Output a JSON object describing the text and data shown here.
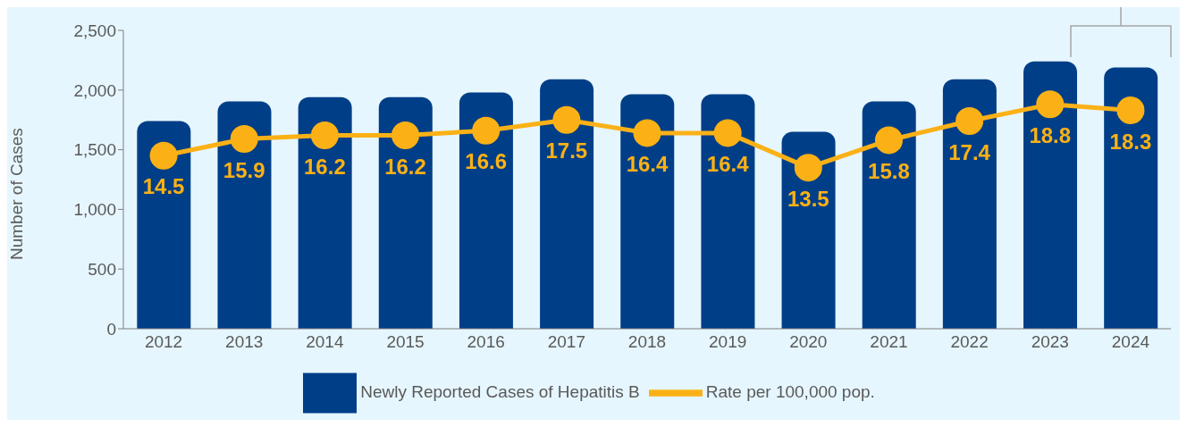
{
  "chart_data": {
    "type": "bar",
    "ylabel": "Number of Cases",
    "categories": [
      "2012",
      "2013",
      "2014",
      "2015",
      "2016",
      "2017",
      "2018",
      "2019",
      "2020",
      "2021",
      "2022",
      "2023",
      "2024"
    ],
    "series": [
      {
        "name": "Newly Reported Cases of Hepatitis B",
        "color": "#003f87",
        "values": [
          1740,
          1905,
          1940,
          1940,
          1980,
          2090,
          1965,
          1965,
          1650,
          1905,
          2090,
          2240,
          2190
        ]
      },
      {
        "name": "Rate per 100,000 pop.",
        "type": "line",
        "axis": "y2",
        "color": "#fbb116",
        "marker": "circle",
        "values": [
          14.5,
          15.9,
          16.2,
          16.2,
          16.6,
          17.5,
          16.4,
          16.4,
          13.5,
          15.8,
          17.4,
          18.8,
          18.3
        ],
        "data_labels": true
      }
    ],
    "ylim": [
      0,
      2500
    ],
    "yticks": [
      0,
      500,
      {
        "value": 1000,
        "label": "1,000"
      },
      {
        "value": 1500,
        "label": "1,500"
      },
      {
        "value": 2000,
        "label": "2,000"
      },
      {
        "value": 2500,
        "label": "2,500"
      }
    ],
    "y2lim": [
      0,
      25
    ],
    "grid": false,
    "legend": "bottom"
  }
}
